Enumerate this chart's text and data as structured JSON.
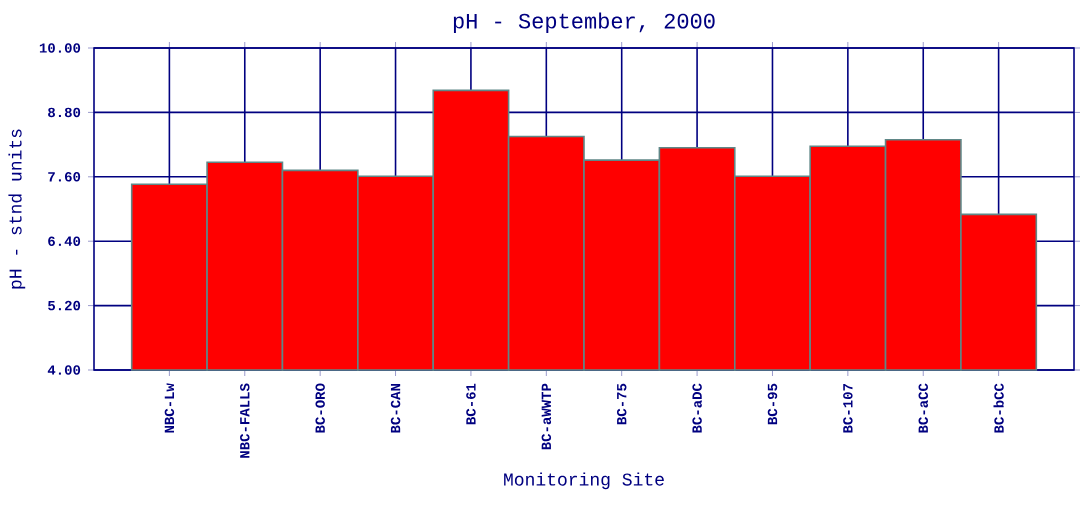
{
  "chart_data": {
    "type": "bar",
    "title": "pH - September, 2000",
    "xlabel": "Monitoring Site",
    "ylabel": "pH - stnd units",
    "categories": [
      "NBC-Lw",
      "NBC-FALLS",
      "BC-ORO",
      "BC-CAN",
      "BC-61",
      "BC-aWWTP",
      "BC-75",
      "BC-aDC",
      "BC-95",
      "BC-107",
      "BC-aCC",
      "BC-bCC"
    ],
    "values": [
      7.46,
      7.87,
      7.72,
      7.61,
      9.21,
      8.35,
      7.91,
      8.14,
      7.61,
      8.17,
      8.29,
      6.9
    ],
    "color": "#ff0000",
    "ylim": [
      4,
      10
    ],
    "yticks": [
      {
        "value": 4,
        "label": "4.00"
      },
      {
        "value": 5.2,
        "label": "5.20"
      },
      {
        "value": 6.4,
        "label": "6.40"
      },
      {
        "value": 7.6,
        "label": "7.60"
      },
      {
        "value": 8.8,
        "label": "8.80"
      },
      {
        "value": 10,
        "label": "10.00"
      }
    ],
    "grid": true
  }
}
